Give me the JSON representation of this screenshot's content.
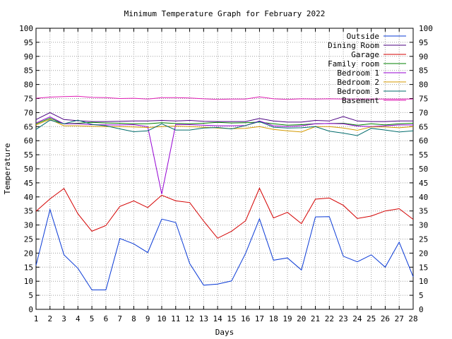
{
  "chart_data": {
    "type": "line",
    "title": "Minimum Temperature Graph for February 2022",
    "xlabel": "Days",
    "ylabel": "Temperature",
    "xlim": [
      1,
      28
    ],
    "ylim": [
      0,
      100
    ],
    "x_ticks": [
      1,
      2,
      3,
      4,
      5,
      6,
      7,
      8,
      9,
      10,
      11,
      12,
      13,
      14,
      15,
      16,
      17,
      18,
      19,
      20,
      21,
      22,
      23,
      24,
      25,
      26,
      27,
      28
    ],
    "y_ticks": [
      0,
      5,
      10,
      15,
      20,
      25,
      30,
      35,
      40,
      45,
      50,
      55,
      60,
      65,
      70,
      75,
      80,
      85,
      90,
      95,
      100
    ],
    "grid": true,
    "legend_position": "top-right",
    "x": [
      1,
      2,
      3,
      4,
      5,
      6,
      7,
      8,
      9,
      10,
      11,
      12,
      13,
      14,
      15,
      16,
      17,
      18,
      19,
      20,
      21,
      22,
      23,
      24,
      25,
      26,
      27,
      28
    ],
    "series": [
      {
        "name": "Outside",
        "color": "#0a3ad6",
        "values": [
          15.6,
          35.5,
          19.4,
          14.6,
          6.9,
          6.9,
          25.2,
          23.3,
          20.2,
          32.1,
          30.9,
          16.3,
          8.6,
          9.0,
          10.1,
          19.9,
          32.2,
          17.5,
          18.3,
          14.0,
          32.9,
          33.0,
          18.9,
          16.9,
          19.4,
          15.0,
          23.9,
          11.6
        ]
      },
      {
        "name": "Dining Room",
        "color": "#4b0082",
        "values": [
          67.5,
          70.0,
          67.5,
          67.1,
          66.8,
          66.8,
          66.9,
          67.0,
          67.0,
          67.2,
          67.0,
          67.2,
          66.9,
          66.8,
          66.8,
          66.8,
          67.9,
          67.0,
          66.6,
          66.6,
          67.2,
          67.0,
          68.6,
          67.0,
          66.8,
          66.8,
          67.0,
          67.0
        ]
      },
      {
        "name": "Garage",
        "color": "#d40000",
        "values": [
          34.9,
          39.3,
          43.0,
          34.0,
          27.8,
          29.8,
          36.6,
          38.6,
          36.2,
          40.6,
          38.6,
          38.0,
          31.4,
          25.3,
          27.8,
          31.5,
          43.1,
          32.5,
          34.5,
          30.5,
          39.2,
          39.6,
          37.0,
          32.3,
          33.2,
          35.0,
          35.8,
          32.0
        ]
      },
      {
        "name": "Family room",
        "color": "#008000",
        "values": [
          66.0,
          68.0,
          66.0,
          66.2,
          66.5,
          66.3,
          66.2,
          66.0,
          66.0,
          66.4,
          66.1,
          66.0,
          66.2,
          66.5,
          66.3,
          66.4,
          66.6,
          66.0,
          65.5,
          65.7,
          66.0,
          66.1,
          66.2,
          65.5,
          66.0,
          65.6,
          66.0,
          66.2
        ]
      },
      {
        "name": "Bedroom 1",
        "color": "#9400d3",
        "values": [
          66.3,
          68.5,
          66.0,
          66.0,
          65.7,
          65.6,
          65.6,
          65.7,
          65.0,
          41.0,
          65.8,
          65.7,
          65.5,
          65.3,
          65.3,
          65.4,
          67.0,
          65.3,
          65.0,
          65.3,
          66.0,
          66.1,
          66.0,
          65.2,
          65.0,
          65.3,
          65.6,
          65.6
        ]
      },
      {
        "name": "Bedroom 2",
        "color": "#d49a00",
        "values": [
          65.6,
          67.6,
          65.3,
          65.3,
          65.1,
          65.0,
          65.0,
          64.9,
          64.7,
          65.0,
          65.2,
          65.0,
          64.8,
          64.5,
          64.3,
          64.4,
          65.0,
          64.0,
          63.5,
          63.1,
          65.0,
          65.0,
          64.5,
          63.7,
          64.9,
          64.9,
          64.6,
          65.0
        ]
      },
      {
        "name": "Bedroom 3",
        "color": "#006b6b",
        "values": [
          64.0,
          67.3,
          66.0,
          67.3,
          65.8,
          65.3,
          64.2,
          63.2,
          63.5,
          66.0,
          63.8,
          63.8,
          64.5,
          64.7,
          64.2,
          65.4,
          66.8,
          64.8,
          64.5,
          64.6,
          65.0,
          63.4,
          62.7,
          61.8,
          64.4,
          63.8,
          63.1,
          63.5
        ]
      },
      {
        "name": "Basement",
        "color": "#e01fb5",
        "values": [
          75.1,
          75.5,
          75.7,
          75.8,
          75.4,
          75.3,
          75.0,
          75.1,
          74.8,
          75.3,
          75.3,
          75.2,
          74.9,
          74.7,
          74.8,
          74.8,
          75.6,
          74.9,
          74.7,
          74.9,
          74.8,
          74.9,
          74.8,
          74.8,
          74.8,
          74.8,
          74.8,
          74.8
        ]
      }
    ]
  }
}
